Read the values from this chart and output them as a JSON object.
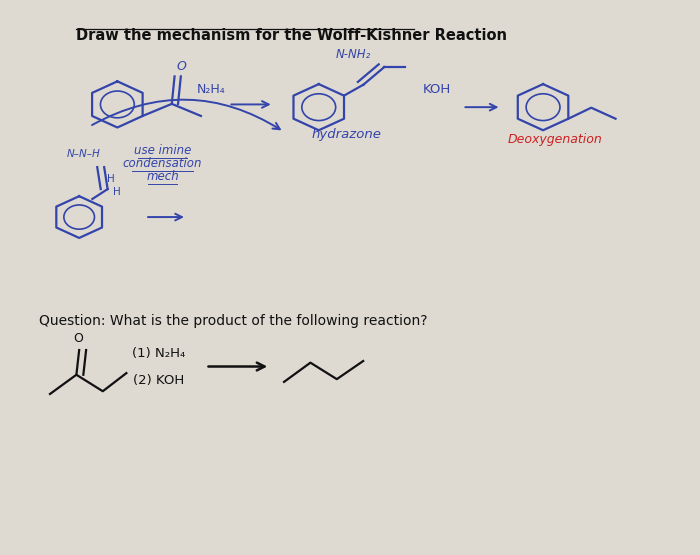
{
  "title": "Draw the mechanism for the Wolff-Kishner Reaction",
  "title_fontsize": 10.5,
  "background_color": "#dedad2",
  "paper_color": "#f0ede5",
  "blue_ink": "#3344aa",
  "red_ink": "#cc2222",
  "black_ink": "#111111",
  "question_text": "Question: What is the product of the following reaction?",
  "step1_label": "(1) N₂H₄",
  "step2_label": "(2) KOH",
  "hydrazone_label": "hydrazone",
  "deoxygenation_label": "Deoxygenation",
  "N2H4_label": "N₂H₄",
  "KOH_label": "KOH",
  "use_imine_line1": "use imine",
  "use_imine_line2": "condensation",
  "use_imine_line3": "mech"
}
